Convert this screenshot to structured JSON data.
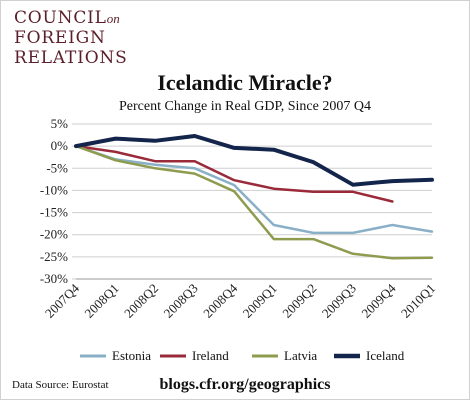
{
  "logo": {
    "line1": "COUNCIL",
    "line1_suffix": "on",
    "line2": "FOREIGN",
    "line3": "RELATIONS",
    "color": "#5b1f2b"
  },
  "footer": {
    "source": "Data Source: Eurostat",
    "url": "blogs.cfr.org/geographics"
  },
  "chart_data": {
    "type": "line",
    "title": "Icelandic Miracle?",
    "subtitle": "Percent Change in Real GDP, Since 2007 Q4",
    "categories": [
      "2007Q4",
      "2008Q1",
      "2008Q2",
      "2008Q3",
      "2008Q4",
      "2009Q1",
      "2009Q2",
      "2009Q3",
      "2009Q4",
      "2010Q1"
    ],
    "ylim": [
      -30,
      5
    ],
    "yticks": [
      5,
      0,
      -5,
      -10,
      -15,
      -20,
      -25,
      -30
    ],
    "ytick_labels": [
      "5%",
      "0%",
      "-5%",
      "-10%",
      "-15%",
      "-20%",
      "-25%",
      "-30%"
    ],
    "grid": "horizontal",
    "legend": "bottom",
    "series": [
      {
        "name": "Estonia",
        "color": "#8ab0c8",
        "width": 2.5,
        "values": [
          0,
          -3.0,
          -4.2,
          -5.0,
          -8.8,
          -17.8,
          -19.6,
          -19.6,
          -17.8,
          -19.3
        ]
      },
      {
        "name": "Ireland",
        "color": "#9a2a3a",
        "width": 2.5,
        "values": [
          0,
          -1.3,
          -3.4,
          -3.4,
          -7.7,
          -9.6,
          -10.3,
          -10.3,
          -12.5,
          null
        ]
      },
      {
        "name": "Latvia",
        "color": "#8e9c50",
        "width": 2.5,
        "values": [
          0,
          -3.2,
          -5.0,
          -6.2,
          -10.2,
          -21.0,
          -21.0,
          -24.3,
          -25.3,
          -25.2
        ]
      },
      {
        "name": "Iceland",
        "color": "#14254c",
        "width": 4,
        "values": [
          0,
          1.7,
          1.2,
          2.3,
          -0.4,
          -0.8,
          -3.6,
          -8.7,
          -7.9,
          -7.6
        ]
      }
    ]
  }
}
